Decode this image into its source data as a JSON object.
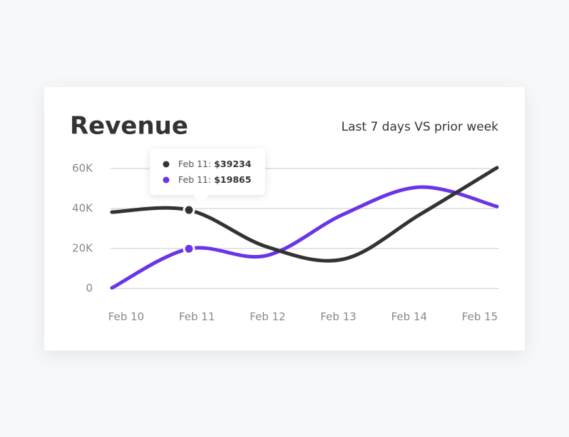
{
  "chart_data": {
    "type": "line",
    "title": "Revenue",
    "subtitle": "Last 7 days VS prior week",
    "categories": [
      "Feb 10",
      "Feb 11",
      "Feb 12",
      "Feb 13",
      "Feb 14",
      "Feb 15"
    ],
    "series": [
      {
        "name": "Last 7 days",
        "color": "#333333",
        "values": [
          38200,
          39234,
          21000,
          14600,
          37000,
          60400
        ]
      },
      {
        "name": "Prior week",
        "color": "#6a35e6",
        "values": [
          300,
          19865,
          16400,
          37000,
          50700,
          41000
        ]
      }
    ],
    "ylim": [
      0,
      60000
    ],
    "yticks": [
      0,
      {
        "value": 20000,
        "label": "20K"
      },
      {
        "value": 40000,
        "label": "40K"
      },
      {
        "value": 60000,
        "label": "60K"
      }
    ],
    "grid": true,
    "tooltip": {
      "index": 1,
      "items": [
        {
          "label": "Feb 11:",
          "value": "$39234"
        },
        {
          "label": "Feb 11:",
          "value": "$19865"
        }
      ]
    }
  }
}
